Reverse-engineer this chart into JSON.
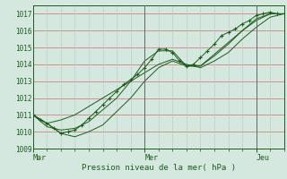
{
  "xlabel": "Pression niveau de la mer( hPa )",
  "ylim": [
    1009,
    1017.5
  ],
  "xlim": [
    0,
    108
  ],
  "yticks": [
    1009,
    1010,
    1011,
    1012,
    1013,
    1014,
    1015,
    1016,
    1017
  ],
  "bg_color": "#d4e8e0",
  "grid_color_h": "#d08080",
  "grid_color_v": "#b8ccb8",
  "line_color": "#1a5c1a",
  "vline_color": "#666666",
  "day_labels": [
    "Mar",
    "Mer",
    "Jeu"
  ],
  "day_positions": [
    0,
    48,
    96
  ],
  "series": [
    {
      "x": [
        0,
        3,
        6,
        9,
        12,
        15,
        18,
        21,
        24,
        27,
        30,
        33,
        36,
        39,
        42,
        45,
        48,
        51,
        54,
        57,
        60,
        63,
        66,
        69,
        72,
        75,
        78,
        81,
        84,
        87,
        90,
        93,
        96,
        99,
        102,
        105,
        108
      ],
      "y": [
        1011.0,
        1010.7,
        1010.5,
        1010.2,
        1009.9,
        1010.0,
        1010.1,
        1010.4,
        1010.8,
        1011.2,
        1011.6,
        1012.0,
        1012.4,
        1012.8,
        1013.1,
        1013.4,
        1013.8,
        1014.3,
        1014.9,
        1014.9,
        1014.7,
        1014.2,
        1013.9,
        1014.0,
        1014.4,
        1014.8,
        1015.2,
        1015.7,
        1015.9,
        1016.1,
        1016.4,
        1016.6,
        1016.9,
        1017.0,
        1017.1,
        1017.0,
        1017.0
      ],
      "marker": true
    },
    {
      "x": [
        0,
        6,
        12,
        18,
        24,
        30,
        36,
        42,
        48,
        54,
        60,
        66,
        72,
        78,
        84,
        90,
        96,
        102,
        108
      ],
      "y": [
        1011.0,
        1010.5,
        1009.9,
        1009.7,
        1010.0,
        1010.4,
        1011.2,
        1012.0,
        1013.0,
        1013.8,
        1014.2,
        1013.9,
        1013.9,
        1014.5,
        1015.2,
        1016.0,
        1016.7,
        1017.0,
        1017.0
      ],
      "marker": false
    },
    {
      "x": [
        0,
        6,
        12,
        18,
        24,
        30,
        36,
        42,
        48,
        54,
        60,
        66,
        72,
        78,
        84,
        90,
        96,
        102,
        108
      ],
      "y": [
        1011.0,
        1010.3,
        1010.1,
        1010.2,
        1010.6,
        1011.3,
        1012.0,
        1013.0,
        1014.2,
        1014.8,
        1014.8,
        1013.9,
        1013.9,
        1014.6,
        1015.3,
        1016.0,
        1016.6,
        1017.0,
        1017.0
      ],
      "marker": false
    },
    {
      "x": [
        0,
        6,
        12,
        18,
        24,
        30,
        36,
        42,
        48,
        54,
        60,
        66,
        72,
        78,
        84,
        90,
        96,
        102,
        108
      ],
      "y": [
        1011.0,
        1010.5,
        1010.7,
        1011.0,
        1011.5,
        1012.0,
        1012.5,
        1013.0,
        1013.5,
        1014.0,
        1014.3,
        1014.0,
        1013.8,
        1014.2,
        1014.7,
        1015.5,
        1016.2,
        1016.8,
        1017.0
      ],
      "marker": false
    }
  ]
}
